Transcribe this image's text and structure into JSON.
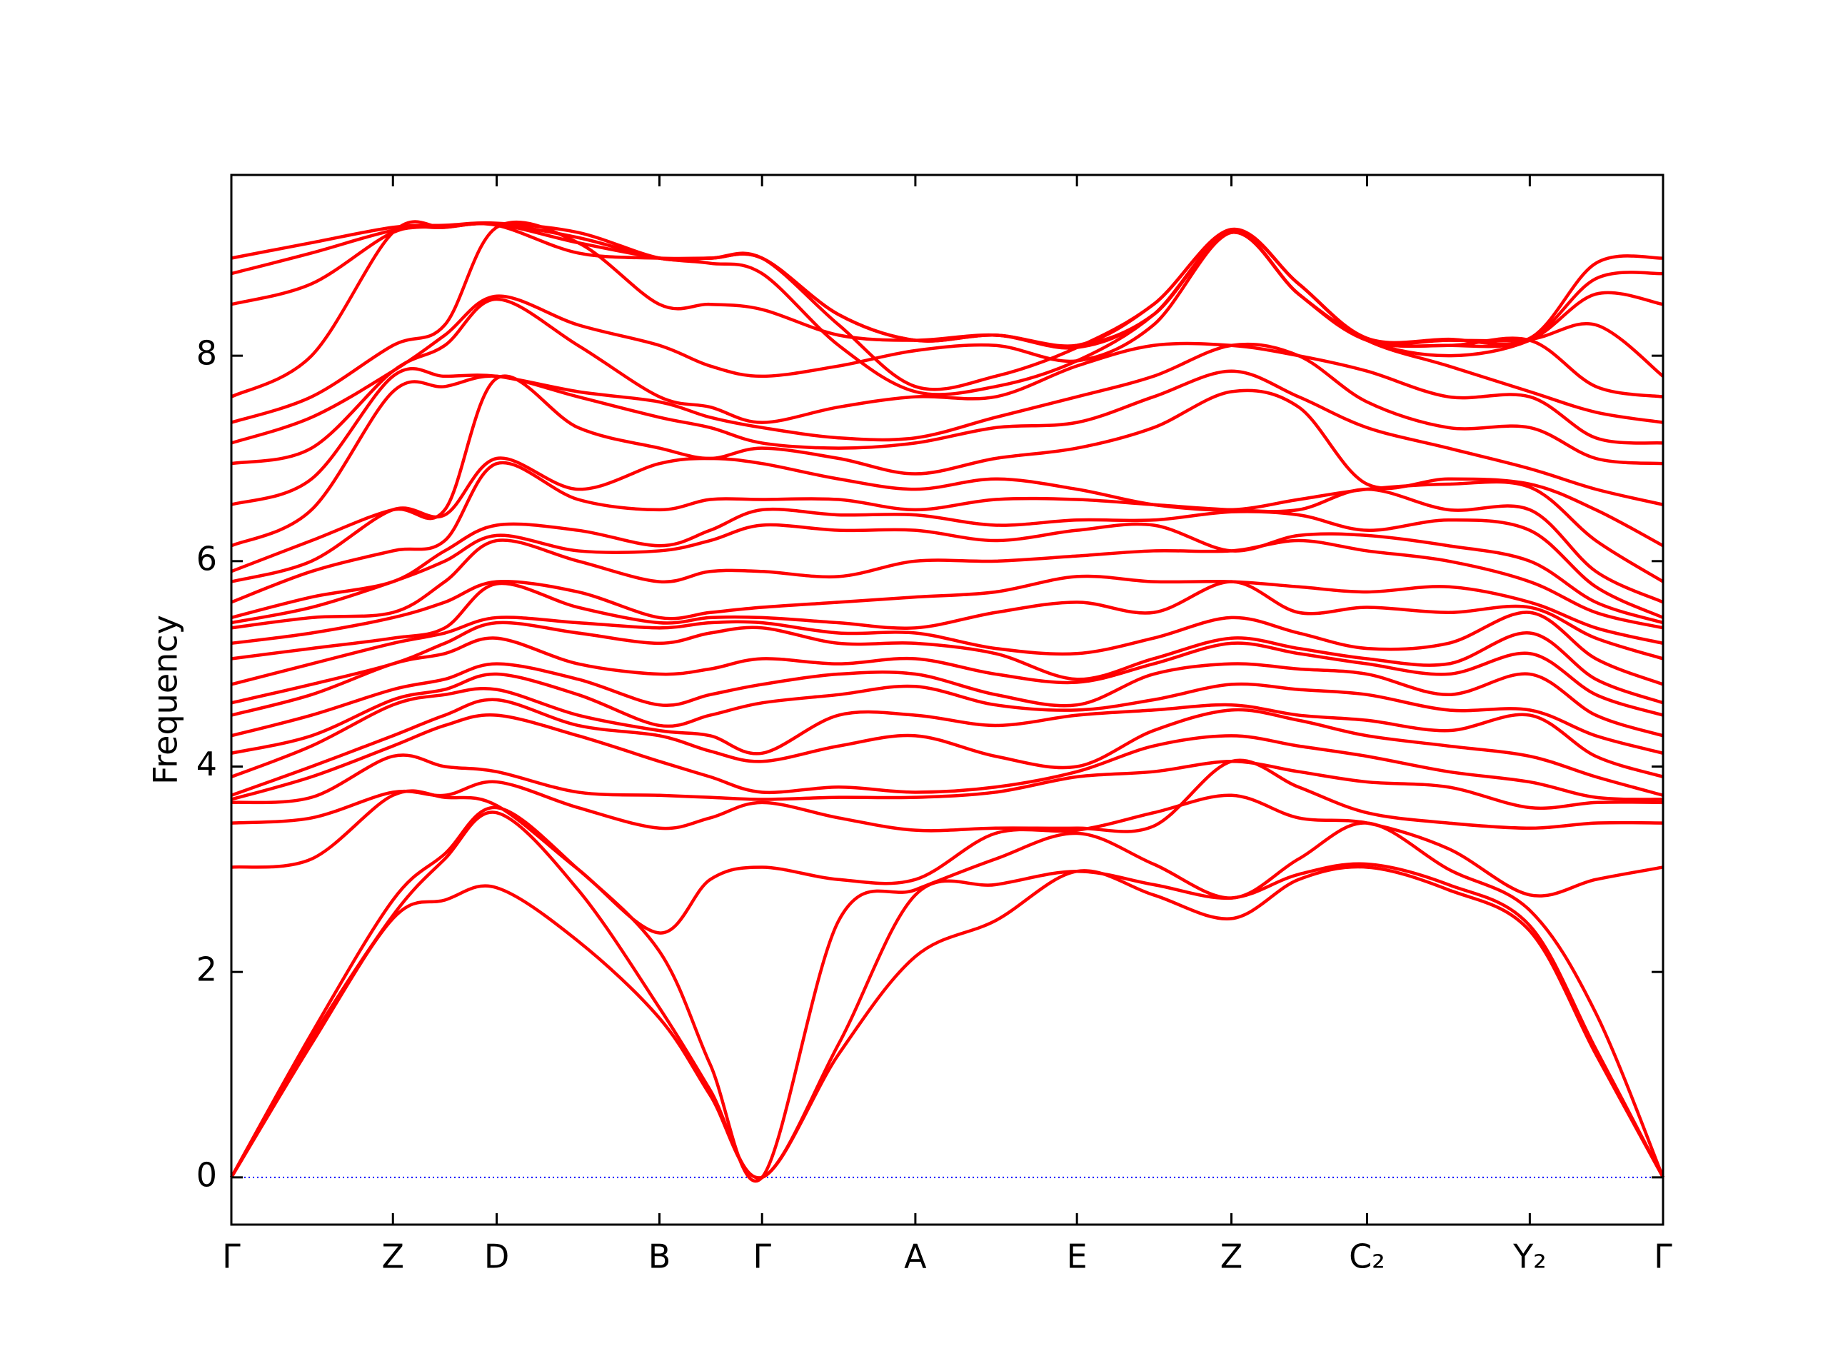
{
  "chart_data": {
    "type": "line",
    "ylabel": "Frequency",
    "color": "#ff0000",
    "x": [
      0,
      68,
      137,
      181,
      225,
      294,
      363,
      406,
      450,
      515,
      580,
      648,
      717,
      782,
      848,
      905,
      963,
      1032,
      1101,
      1157,
      1214
    ],
    "xlim": [
      0,
      1214
    ],
    "xticks": [
      {
        "value": 0,
        "label": "Γ"
      },
      {
        "value": 137,
        "label": "Z"
      },
      {
        "value": 225,
        "label": "D"
      },
      {
        "value": 363,
        "label": "B"
      },
      {
        "value": 450,
        "label": "Γ"
      },
      {
        "value": 580,
        "label": "A"
      },
      {
        "value": 717,
        "label": "E"
      },
      {
        "value": 848,
        "label": "Z"
      },
      {
        "value": 963,
        "label": "C₂"
      },
      {
        "value": 1101,
        "label": "Y₂"
      },
      {
        "value": 1214,
        "label": "Γ"
      }
    ],
    "ylim": [
      -0.46,
      9.76
    ],
    "yticks": [
      0,
      2,
      4,
      6,
      8
    ],
    "zero_line": {
      "value": 0,
      "color": "#0000ff"
    },
    "series": [
      {
        "values": [
          0,
          1.3,
          2.52,
          2.7,
          2.82,
          2.3,
          1.55,
          0.8,
          0,
          1.2,
          2.15,
          2.5,
          2.98,
          2.75,
          2.52,
          2.9,
          3.02,
          2.8,
          2.4,
          1.2,
          0
        ]
      },
      {
        "values": [
          0,
          1.35,
          2.55,
          3.1,
          3.55,
          2.8,
          1.65,
          0.85,
          0,
          1.3,
          2.75,
          2.85,
          2.98,
          2.85,
          2.72,
          2.95,
          3.05,
          2.85,
          2.45,
          1.25,
          0
        ]
      },
      {
        "values": [
          0,
          1.4,
          2.7,
          3.15,
          3.6,
          3.0,
          2.2,
          1.1,
          0,
          2.5,
          2.8,
          3.1,
          3.35,
          3.05,
          2.72,
          3.1,
          3.45,
          3.0,
          2.6,
          1.6,
          0
        ]
      },
      {
        "values": [
          3.02,
          3.1,
          3.72,
          3.7,
          3.62,
          3.0,
          2.38,
          2.9,
          3.02,
          2.9,
          2.9,
          3.35,
          3.38,
          3.55,
          3.72,
          3.5,
          3.45,
          3.2,
          2.75,
          2.9,
          3.02
        ]
      },
      {
        "values": [
          3.45,
          3.5,
          3.75,
          3.72,
          3.85,
          3.6,
          3.4,
          3.5,
          3.65,
          3.5,
          3.38,
          3.4,
          3.4,
          3.42,
          4.05,
          3.8,
          3.55,
          3.45,
          3.4,
          3.45,
          3.45
        ]
      },
      {
        "values": [
          3.65,
          3.7,
          4.1,
          4.0,
          3.95,
          3.75,
          3.72,
          3.7,
          3.68,
          3.7,
          3.7,
          3.75,
          3.9,
          3.95,
          4.05,
          3.95,
          3.85,
          3.8,
          3.6,
          3.65,
          3.65
        ]
      },
      {
        "values": [
          3.68,
          3.9,
          4.2,
          4.4,
          4.5,
          4.3,
          4.05,
          3.9,
          3.75,
          3.8,
          3.75,
          3.8,
          3.95,
          4.2,
          4.3,
          4.2,
          4.1,
          3.95,
          3.85,
          3.7,
          3.68
        ]
      },
      {
        "values": [
          3.72,
          4.0,
          4.3,
          4.5,
          4.65,
          4.4,
          4.3,
          4.15,
          4.05,
          4.2,
          4.3,
          4.1,
          4.0,
          4.35,
          4.55,
          4.45,
          4.3,
          4.2,
          4.1,
          3.9,
          3.72
        ]
      },
      {
        "values": [
          3.9,
          4.2,
          4.6,
          4.7,
          4.75,
          4.5,
          4.35,
          4.3,
          4.13,
          4.5,
          4.5,
          4.4,
          4.5,
          4.55,
          4.6,
          4.5,
          4.45,
          4.35,
          4.5,
          4.1,
          3.9
        ]
      },
      {
        "values": [
          4.13,
          4.3,
          4.65,
          4.75,
          4.9,
          4.7,
          4.4,
          4.5,
          4.62,
          4.7,
          4.78,
          4.6,
          4.55,
          4.65,
          4.8,
          4.75,
          4.7,
          4.55,
          4.55,
          4.3,
          4.13
        ]
      },
      {
        "values": [
          4.3,
          4.5,
          4.75,
          4.85,
          5.0,
          4.85,
          4.6,
          4.7,
          4.8,
          4.9,
          4.9,
          4.7,
          4.6,
          4.9,
          5.0,
          4.95,
          4.9,
          4.7,
          4.9,
          4.5,
          4.3
        ]
      },
      {
        "values": [
          4.5,
          4.7,
          5.0,
          5.1,
          5.25,
          5.0,
          4.9,
          4.95,
          5.05,
          5.0,
          5.05,
          4.9,
          4.82,
          5.0,
          5.2,
          5.1,
          5.0,
          4.9,
          5.1,
          4.7,
          4.5
        ]
      },
      {
        "values": [
          4.62,
          4.8,
          5.0,
          5.2,
          5.4,
          5.3,
          5.2,
          5.3,
          5.35,
          5.2,
          5.2,
          5.1,
          4.85,
          5.05,
          5.25,
          5.15,
          5.05,
          5.0,
          5.3,
          4.85,
          4.62
        ]
      },
      {
        "values": [
          4.8,
          5.0,
          5.2,
          5.3,
          5.45,
          5.4,
          5.35,
          5.4,
          5.4,
          5.3,
          5.3,
          5.15,
          5.1,
          5.25,
          5.45,
          5.3,
          5.15,
          5.2,
          5.5,
          5.05,
          4.8
        ]
      },
      {
        "values": [
          5.05,
          5.15,
          5.25,
          5.35,
          5.78,
          5.55,
          5.4,
          5.45,
          5.45,
          5.4,
          5.35,
          5.5,
          5.6,
          5.5,
          5.8,
          5.5,
          5.55,
          5.5,
          5.55,
          5.25,
          5.05
        ]
      },
      {
        "values": [
          5.2,
          5.3,
          5.45,
          5.6,
          5.8,
          5.7,
          5.45,
          5.5,
          5.55,
          5.6,
          5.65,
          5.7,
          5.85,
          5.8,
          5.8,
          5.75,
          5.7,
          5.75,
          5.6,
          5.35,
          5.2
        ]
      },
      {
        "values": [
          5.35,
          5.45,
          5.5,
          5.8,
          6.2,
          6.0,
          5.8,
          5.9,
          5.9,
          5.85,
          6.0,
          6.0,
          6.05,
          6.1,
          6.1,
          6.2,
          6.1,
          6.0,
          5.8,
          5.5,
          5.35
        ]
      },
      {
        "values": [
          5.4,
          5.55,
          5.8,
          6.0,
          6.25,
          6.1,
          6.1,
          6.2,
          6.35,
          6.3,
          6.3,
          6.2,
          6.3,
          6.35,
          6.1,
          6.25,
          6.25,
          6.15,
          6.0,
          5.6,
          5.4
        ]
      },
      {
        "values": [
          5.45,
          5.65,
          5.8,
          6.1,
          6.35,
          6.3,
          6.15,
          6.3,
          6.5,
          6.45,
          6.45,
          6.35,
          6.4,
          6.4,
          6.48,
          6.45,
          6.3,
          6.4,
          6.3,
          5.75,
          5.45
        ]
      },
      {
        "values": [
          5.6,
          5.9,
          6.1,
          6.2,
          6.95,
          6.6,
          6.5,
          6.6,
          6.6,
          6.6,
          6.5,
          6.6,
          6.6,
          6.55,
          6.5,
          6.5,
          6.7,
          6.5,
          6.5,
          5.9,
          5.6
        ]
      },
      {
        "values": [
          5.8,
          6.0,
          6.5,
          6.45,
          7.0,
          6.7,
          6.95,
          7.0,
          6.95,
          6.8,
          6.7,
          6.8,
          6.7,
          6.55,
          6.5,
          6.6,
          6.7,
          6.75,
          6.72,
          6.2,
          5.8
        ]
      },
      {
        "values": [
          5.9,
          6.2,
          6.5,
          6.5,
          7.78,
          7.3,
          7.1,
          7.0,
          7.1,
          7.0,
          6.85,
          7.0,
          7.1,
          7.3,
          7.65,
          7.5,
          6.75,
          6.8,
          6.75,
          6.5,
          6.15
        ]
      },
      {
        "values": [
          6.15,
          6.5,
          7.65,
          7.7,
          7.8,
          7.6,
          7.4,
          7.3,
          7.15,
          7.1,
          7.15,
          7.3,
          7.35,
          7.6,
          7.85,
          7.6,
          7.3,
          7.1,
          6.9,
          6.7,
          6.55
        ]
      },
      {
        "values": [
          6.55,
          6.8,
          7.8,
          7.8,
          7.8,
          7.65,
          7.55,
          7.4,
          7.3,
          7.2,
          7.2,
          7.4,
          7.6,
          7.8,
          8.1,
          8.0,
          7.55,
          7.3,
          7.3,
          7.0,
          6.95
        ]
      },
      {
        "values": [
          6.95,
          7.1,
          7.85,
          8.1,
          8.55,
          8.1,
          7.6,
          7.5,
          7.35,
          7.5,
          7.6,
          7.6,
          7.9,
          8.1,
          8.1,
          8.0,
          7.85,
          7.6,
          7.6,
          7.2,
          7.15
        ]
      },
      {
        "values": [
          7.15,
          7.4,
          7.85,
          8.2,
          8.58,
          8.3,
          8.1,
          7.9,
          7.8,
          7.9,
          8.05,
          8.1,
          7.95,
          8.3,
          9.2,
          8.6,
          8.15,
          7.9,
          7.65,
          7.45,
          7.35
        ]
      },
      {
        "values": [
          7.35,
          7.6,
          8.1,
          8.3,
          9.25,
          9.1,
          8.5,
          8.5,
          8.45,
          8.2,
          8.15,
          8.2,
          8.08,
          8.4,
          9.2,
          8.6,
          8.15,
          8.1,
          8.15,
          7.7,
          7.6
        ]
      },
      {
        "values": [
          7.6,
          8.0,
          9.2,
          9.25,
          9.27,
          9.0,
          8.95,
          8.95,
          8.95,
          8.4,
          8.15,
          8.2,
          8.1,
          8.4,
          9.22,
          8.7,
          8.16,
          8.15,
          8.16,
          8.3,
          7.8
        ]
      },
      {
        "values": [
          8.5,
          8.7,
          9.2,
          9.25,
          9.28,
          9.1,
          8.95,
          8.9,
          8.8,
          8.1,
          7.65,
          7.7,
          7.95,
          8.4,
          9.2,
          8.6,
          8.15,
          8.0,
          8.15,
          8.6,
          8.5
        ]
      },
      {
        "values": [
          8.8,
          9.0,
          9.22,
          9.26,
          9.28,
          9.15,
          8.95,
          8.95,
          8.95,
          8.3,
          7.7,
          7.8,
          8.08,
          8.5,
          9.22,
          8.7,
          8.16,
          8.1,
          8.16,
          8.75,
          8.8
        ]
      },
      {
        "values": [
          8.95,
          9.1,
          9.25,
          9.27,
          9.29,
          9.2,
          8.95,
          8.95,
          8.95,
          8.4,
          8.15,
          8.2,
          8.1,
          8.5,
          9.23,
          8.7,
          8.17,
          8.16,
          8.17,
          8.9,
          8.95
        ]
      }
    ]
  }
}
